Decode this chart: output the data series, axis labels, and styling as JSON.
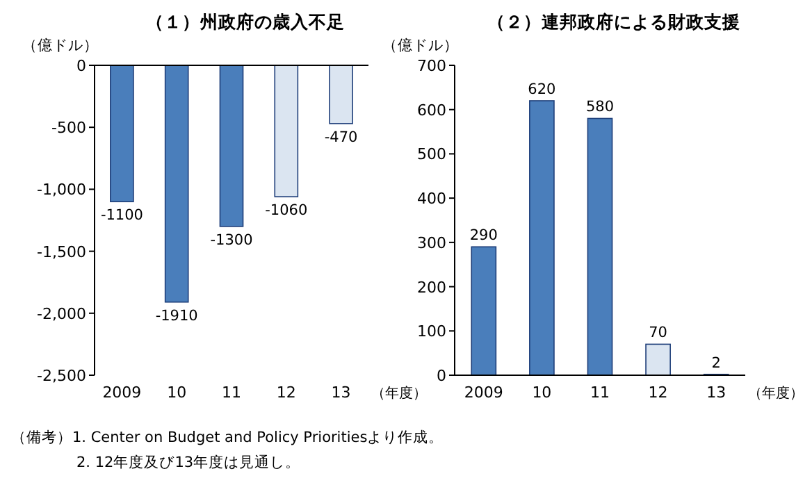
{
  "chart_data": [
    {
      "type": "bar",
      "title": "（１）州政府の歳入不足",
      "ylabel": "（億ドル）",
      "xlabel": "（年度）",
      "categories": [
        "2009",
        "10",
        "11",
        "12",
        "13"
      ],
      "values": [
        -1100,
        -1910,
        -1300,
        -1060,
        -470
      ],
      "colors": [
        "#4a7ebb",
        "#4a7ebb",
        "#4a7ebb",
        "#dbe5f1",
        "#dbe5f1"
      ],
      "data_labels": true,
      "ylim": [
        -2500,
        0
      ],
      "yticks": [
        {
          "value": -2500,
          "label": "-2,500"
        },
        {
          "value": -2000,
          "label": "-2,000"
        },
        {
          "value": -1500,
          "label": "-1,500"
        },
        {
          "value": -1000,
          "label": "-1,000"
        },
        -500,
        0
      ],
      "annotations": [
        "（備考）1. Center on Budget and Policy Prioritiesより作成。",
        "2. 12年度及び13年度は見通し。"
      ]
    },
    {
      "type": "bar",
      "title": "（２）連邦政府による財政支援",
      "ylabel": "（億ドル）",
      "xlabel": "（年度）",
      "categories": [
        "2009",
        "10",
        "11",
        "12",
        "13"
      ],
      "values": [
        290,
        620,
        580,
        70,
        2
      ],
      "colors": [
        "#4a7ebb",
        "#4a7ebb",
        "#4a7ebb",
        "#dbe5f1",
        "#dbe5f1"
      ],
      "data_labels": true,
      "ylim": [
        0,
        700
      ],
      "yticks": [
        0,
        100,
        200,
        300,
        400,
        500,
        600,
        700
      ]
    }
  ]
}
